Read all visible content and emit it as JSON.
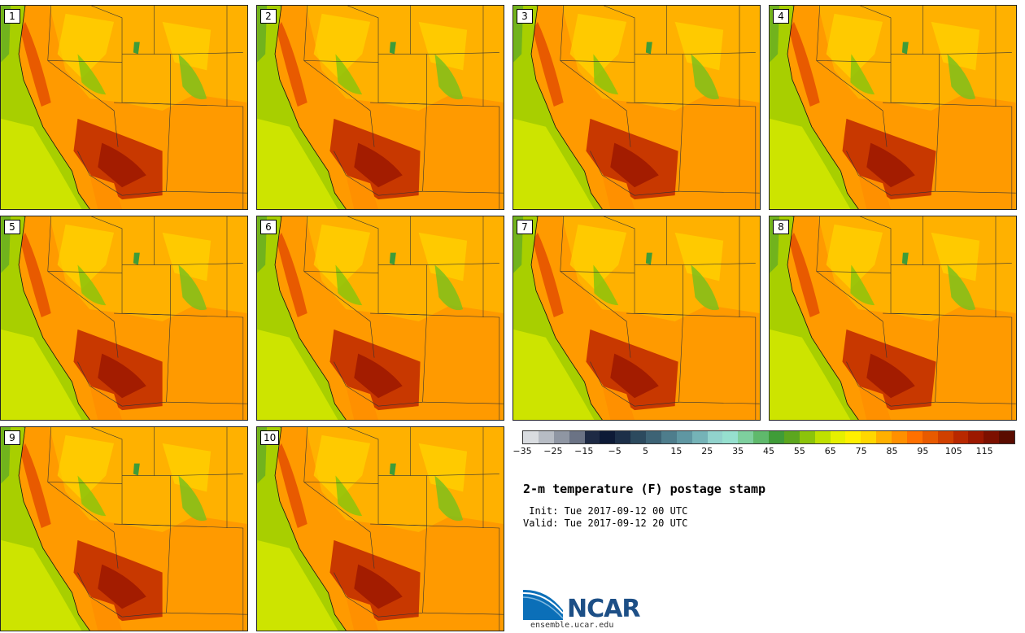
{
  "panels": [
    {
      "label": "1"
    },
    {
      "label": "2"
    },
    {
      "label": "3"
    },
    {
      "label": "4"
    },
    {
      "label": "5"
    },
    {
      "label": "6"
    },
    {
      "label": "7"
    },
    {
      "label": "8"
    },
    {
      "label": "9"
    },
    {
      "label": "10"
    }
  ],
  "colorbar": {
    "colors": [
      "#d9dce0",
      "#b7bcc4",
      "#8f96a3",
      "#6b7385",
      "#1e2a44",
      "#0d1a36",
      "#1c2f48",
      "#2c4a5e",
      "#3d6375",
      "#4e7d8c",
      "#5f97a2",
      "#75b3b7",
      "#91d2cc",
      "#96e0cf",
      "#7ecf9e",
      "#5fb96c",
      "#3f9c38",
      "#5ca61e",
      "#8cc40a",
      "#bfe000",
      "#e6f000",
      "#fff000",
      "#ffd700",
      "#ffb000",
      "#ff9000",
      "#ff7000",
      "#e85a00",
      "#d04000",
      "#b82800",
      "#9c1800",
      "#7c1000",
      "#5a0c00"
    ],
    "tick_labels": [
      "−35",
      "−25",
      "−15",
      "−5",
      "5",
      "15",
      "25",
      "35",
      "45",
      "55",
      "65",
      "75",
      "85",
      "95",
      "105",
      "115"
    ]
  },
  "title": "2-m temperature (F) postage stamp",
  "init": " Init: Tue 2017-09-12 00 UTC",
  "valid": "Valid: Tue 2017-09-12 20 UTC",
  "logo": {
    "text": "NCAR",
    "url": "ensemble.ucar.edu"
  }
}
